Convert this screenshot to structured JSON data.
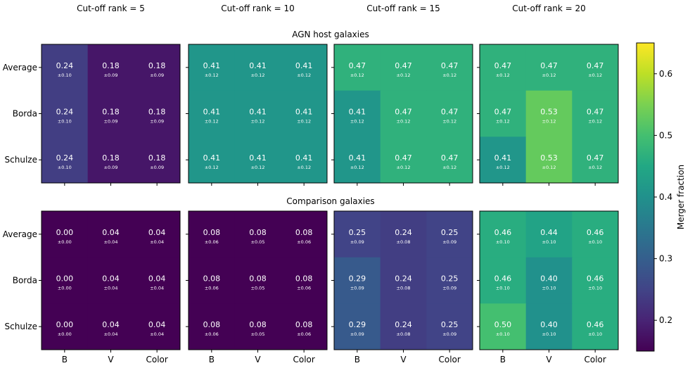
{
  "chart_data": {
    "type": "heatmap",
    "column_titles": [
      "Cut-off rank = 5",
      "Cut-off rank = 10",
      "Cut-off rank = 15",
      "Cut-off rank = 20"
    ],
    "row_group_titles": [
      "AGN host galaxies",
      "Comparison galaxies"
    ],
    "row_labels": [
      "Average",
      "Borda",
      "Schulze"
    ],
    "col_labels": [
      "B",
      "V",
      "Color"
    ],
    "colorbar": {
      "label": "Merger fraction",
      "colormap": "viridis",
      "range": [
        0.15,
        0.65
      ],
      "ticks": [
        "0.2",
        "0.3",
        "0.4",
        "0.5",
        "0.6"
      ]
    },
    "panels": [
      [
        {
          "values": [
            [
              "0.24",
              "0.18",
              "0.18"
            ],
            [
              "0.24",
              "0.18",
              "0.18"
            ],
            [
              "0.24",
              "0.18",
              "0.18"
            ]
          ],
          "errors": [
            [
              "±0.10",
              "±0.09",
              "±0.09"
            ],
            [
              "±0.10",
              "±0.09",
              "±0.09"
            ],
            [
              "±0.10",
              "±0.09",
              "±0.09"
            ]
          ]
        },
        {
          "values": [
            [
              "0.41",
              "0.41",
              "0.41"
            ],
            [
              "0.41",
              "0.41",
              "0.41"
            ],
            [
              "0.41",
              "0.41",
              "0.41"
            ]
          ],
          "errors": [
            [
              "±0.12",
              "±0.12",
              "±0.12"
            ],
            [
              "±0.12",
              "±0.12",
              "±0.12"
            ],
            [
              "±0.12",
              "±0.12",
              "±0.12"
            ]
          ]
        },
        {
          "values": [
            [
              "0.47",
              "0.47",
              "0.47"
            ],
            [
              "0.41",
              "0.47",
              "0.47"
            ],
            [
              "0.41",
              "0.47",
              "0.47"
            ]
          ],
          "errors": [
            [
              "±0.12",
              "±0.12",
              "±0.12"
            ],
            [
              "±0.12",
              "±0.12",
              "±0.12"
            ],
            [
              "±0.12",
              "±0.12",
              "±0.12"
            ]
          ]
        },
        {
          "values": [
            [
              "0.47",
              "0.47",
              "0.47"
            ],
            [
              "0.47",
              "0.53",
              "0.47"
            ],
            [
              "0.41",
              "0.53",
              "0.47"
            ]
          ],
          "errors": [
            [
              "±0.12",
              "±0.12",
              "±0.12"
            ],
            [
              "±0.12",
              "±0.12",
              "±0.12"
            ],
            [
              "±0.12",
              "±0.12",
              "±0.12"
            ]
          ]
        }
      ],
      [
        {
          "values": [
            [
              "0.00",
              "0.04",
              "0.04"
            ],
            [
              "0.00",
              "0.04",
              "0.04"
            ],
            [
              "0.00",
              "0.04",
              "0.04"
            ]
          ],
          "errors": [
            [
              "±0.00",
              "±0.04",
              "±0.04"
            ],
            [
              "±0.00",
              "±0.04",
              "±0.04"
            ],
            [
              "±0.00",
              "±0.04",
              "±0.04"
            ]
          ]
        },
        {
          "values": [
            [
              "0.08",
              "0.08",
              "0.08"
            ],
            [
              "0.08",
              "0.08",
              "0.08"
            ],
            [
              "0.08",
              "0.08",
              "0.08"
            ]
          ],
          "errors": [
            [
              "±0.06",
              "±0.05",
              "±0.06"
            ],
            [
              "±0.06",
              "±0.05",
              "±0.06"
            ],
            [
              "±0.06",
              "±0.05",
              "±0.06"
            ]
          ]
        },
        {
          "values": [
            [
              "0.25",
              "0.24",
              "0.25"
            ],
            [
              "0.29",
              "0.24",
              "0.25"
            ],
            [
              "0.29",
              "0.24",
              "0.25"
            ]
          ],
          "errors": [
            [
              "±0.09",
              "±0.08",
              "±0.09"
            ],
            [
              "±0.09",
              "±0.08",
              "±0.09"
            ],
            [
              "±0.09",
              "±0.08",
              "±0.09"
            ]
          ]
        },
        {
          "values": [
            [
              "0.46",
              "0.44",
              "0.46"
            ],
            [
              "0.46",
              "0.40",
              "0.46"
            ],
            [
              "0.50",
              "0.40",
              "0.46"
            ]
          ],
          "errors": [
            [
              "±0.10",
              "±0.10",
              "±0.10"
            ],
            [
              "±0.10",
              "±0.10",
              "±0.10"
            ],
            [
              "±0.10",
              "±0.10",
              "±0.10"
            ]
          ]
        }
      ]
    ]
  }
}
